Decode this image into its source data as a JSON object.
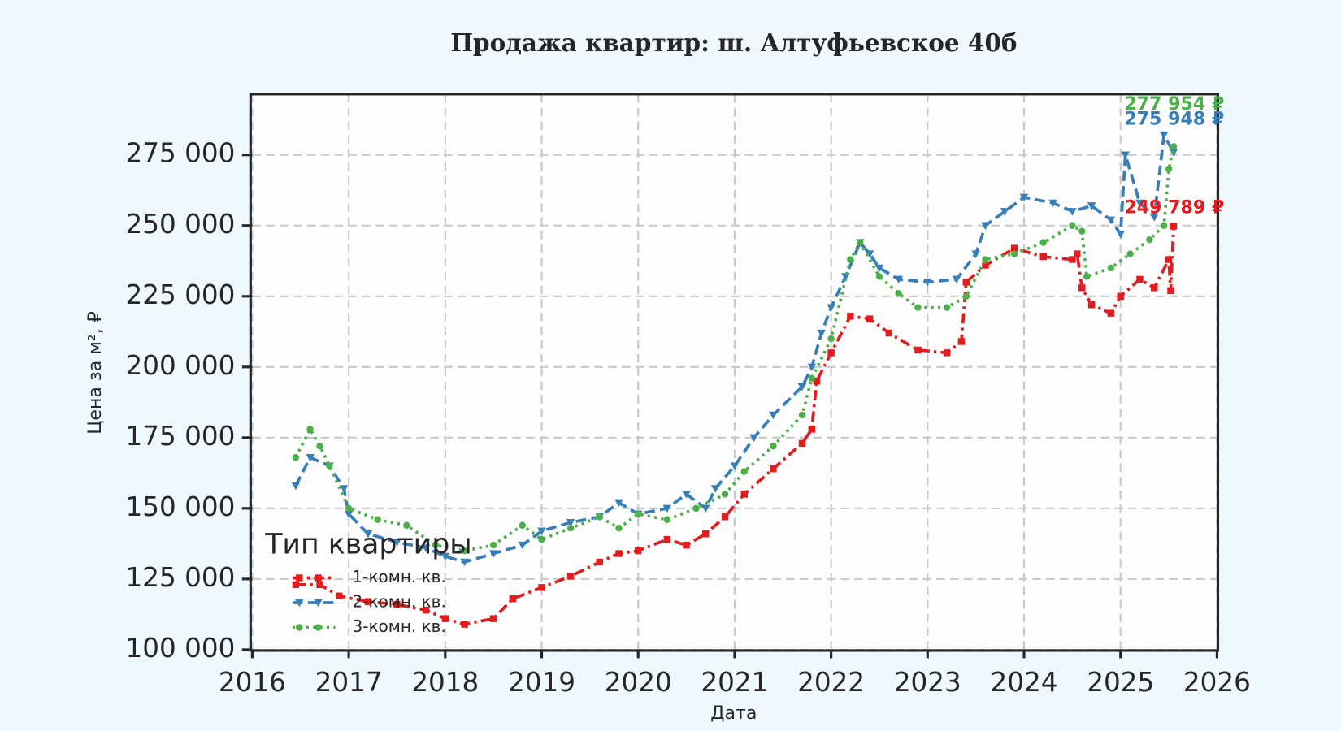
{
  "chart_data": {
    "type": "line",
    "title": "Продажа квартир: ш. Алтуфьевское 40б",
    "x_label": "Дата",
    "y_label": "Цена за м², ₽",
    "legend_title": "Тип квартиры",
    "legend": "lower left",
    "grid": true,
    "xlim": [
      2016,
      2026
    ],
    "xticks": [
      2016,
      2017,
      2018,
      2019,
      2020,
      2021,
      2022,
      2023,
      2024,
      2025,
      2026
    ],
    "ylim": [
      100000,
      296500
    ],
    "yticks": [
      {
        "value": 100000,
        "label": "100 000"
      },
      {
        "value": 125000,
        "label": "125 000"
      },
      {
        "value": 150000,
        "label": "150 000"
      },
      {
        "value": 175000,
        "label": "175 000"
      },
      {
        "value": 200000,
        "label": "200 000"
      },
      {
        "value": 225000,
        "label": "225 000"
      },
      {
        "value": 250000,
        "label": "250 000"
      },
      {
        "value": 275000,
        "label": "275 000"
      }
    ],
    "series": [
      {
        "name": "1-комн. кв.",
        "color": "#e41a1c",
        "dash": "12 5 3 5",
        "marker": "square",
        "end_label": "249 789 ₽",
        "x": [
          2016.45,
          2016.7,
          2016.9,
          2017.2,
          2017.5,
          2017.8,
          2018.0,
          2018.2,
          2018.5,
          2018.7,
          2019.0,
          2019.3,
          2019.6,
          2019.8,
          2020.0,
          2020.3,
          2020.5,
          2020.7,
          2020.9,
          2021.1,
          2021.4,
          2021.7,
          2021.8,
          2021.85,
          2022.0,
          2022.2,
          2022.4,
          2022.6,
          2022.9,
          2023.2,
          2023.35,
          2023.4,
          2023.6,
          2023.9,
          2024.2,
          2024.5,
          2024.55,
          2024.6,
          2024.7,
          2024.9,
          2025.0,
          2025.2,
          2025.35,
          2025.5,
          2025.52,
          2025.55
        ],
        "values": [
          123000,
          123000,
          119000,
          117000,
          116000,
          114000,
          111000,
          109000,
          111000,
          118000,
          122000,
          126000,
          131000,
          134000,
          135000,
          139000,
          137000,
          141000,
          147000,
          155000,
          164000,
          173000,
          178000,
          195000,
          205000,
          218000,
          217000,
          212000,
          206000,
          205000,
          209000,
          230000,
          236000,
          242000,
          239000,
          238000,
          240000,
          228000,
          222000,
          219000,
          225000,
          231000,
          228000,
          238000,
          227000,
          249789
        ]
      },
      {
        "name": "2-комн. кв.",
        "color": "#377eb8",
        "dash": "12 6",
        "marker": "triangle",
        "end_label": "275 948 ₽",
        "x": [
          2016.45,
          2016.6,
          2016.8,
          2016.95,
          2017.0,
          2017.2,
          2017.5,
          2017.8,
          2018.0,
          2018.2,
          2018.5,
          2018.8,
          2019.0,
          2019.3,
          2019.6,
          2019.8,
          2020.0,
          2020.3,
          2020.5,
          2020.7,
          2020.8,
          2021.0,
          2021.2,
          2021.4,
          2021.7,
          2021.8,
          2021.9,
          2022.0,
          2022.15,
          2022.3,
          2022.4,
          2022.5,
          2022.7,
          2023.0,
          2023.3,
          2023.5,
          2023.6,
          2023.8,
          2024.0,
          2024.3,
          2024.5,
          2024.7,
          2024.9,
          2025.0,
          2025.05,
          2025.2,
          2025.35,
          2025.45,
          2025.55
        ],
        "values": [
          158000,
          168000,
          165000,
          157000,
          148000,
          141000,
          138000,
          136000,
          133000,
          131000,
          134000,
          137000,
          142000,
          145000,
          147000,
          152000,
          148000,
          150000,
          155000,
          150000,
          157000,
          165000,
          175000,
          183000,
          193000,
          200000,
          212000,
          221000,
          232000,
          244000,
          240000,
          235000,
          231000,
          230000,
          231000,
          240000,
          250000,
          255000,
          260000,
          258000,
          255000,
          257000,
          252000,
          247000,
          275000,
          258000,
          253000,
          282000,
          275948
        ]
      },
      {
        "name": "3-комн. кв.",
        "color": "#4daf4a",
        "dash": "3 5",
        "marker": "circle",
        "end_label": "277 954 ₽",
        "x": [
          2016.45,
          2016.6,
          2016.7,
          2016.8,
          2017.0,
          2017.3,
          2017.6,
          2017.9,
          2018.2,
          2018.5,
          2018.8,
          2019.0,
          2019.3,
          2019.6,
          2019.8,
          2020.0,
          2020.3,
          2020.6,
          2020.9,
          2021.1,
          2021.4,
          2021.7,
          2021.8,
          2022.0,
          2022.2,
          2022.3,
          2022.5,
          2022.7,
          2022.9,
          2023.2,
          2023.4,
          2023.6,
          2023.9,
          2024.2,
          2024.5,
          2024.6,
          2024.65,
          2024.9,
          2025.1,
          2025.3,
          2025.45,
          2025.5,
          2025.55
        ],
        "values": [
          168000,
          178000,
          172000,
          165000,
          150000,
          146000,
          144000,
          137000,
          135000,
          137000,
          144000,
          139000,
          143000,
          147000,
          143000,
          148000,
          146000,
          150000,
          155000,
          163000,
          172000,
          183000,
          196000,
          210000,
          238000,
          244000,
          232000,
          226000,
          221000,
          221000,
          225000,
          238000,
          240000,
          244000,
          250000,
          248000,
          232000,
          235000,
          240000,
          245000,
          250000,
          270000,
          277954
        ]
      }
    ]
  }
}
